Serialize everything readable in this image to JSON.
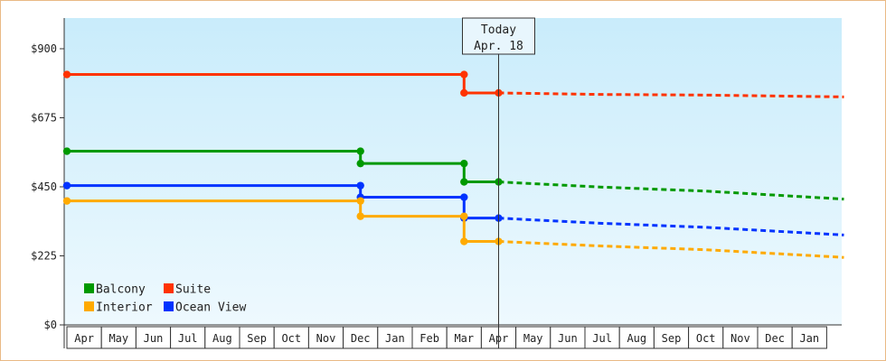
{
  "chart_data": {
    "type": "line",
    "ylim": [
      0,
      1000
    ],
    "y_ticks": [
      {
        "value": 0,
        "label": "$0"
      },
      {
        "value": 225,
        "label": "$225"
      },
      {
        "value": 450,
        "label": "$450"
      },
      {
        "value": 675,
        "label": "$675"
      },
      {
        "value": 900,
        "label": "$900"
      }
    ],
    "months": [
      "Apr",
      "May",
      "Jun",
      "Jul",
      "Aug",
      "Sep",
      "Oct",
      "Nov",
      "Dec",
      "Jan",
      "Feb",
      "Mar",
      "Apr",
      "May",
      "Jun",
      "Jul",
      "Aug",
      "Sep",
      "Oct",
      "Nov",
      "Dec",
      "Jan"
    ],
    "today": {
      "title": "Today",
      "date": "Apr. 18",
      "month_index": 12.5
    },
    "grid": false,
    "legend_position": "bottom-left",
    "series": [
      {
        "name": "Suite",
        "color": "#ff3300",
        "history": [
          [
            0,
            816
          ],
          [
            11.5,
            816
          ],
          [
            11.5,
            756
          ],
          [
            12.5,
            756
          ]
        ],
        "markers": [
          [
            0,
            816
          ],
          [
            11.5,
            816
          ],
          [
            11.5,
            756
          ],
          [
            12.5,
            756
          ]
        ],
        "forecast": [
          [
            12.5,
            756
          ],
          [
            15.5,
            751
          ],
          [
            18.5,
            749
          ],
          [
            22.5,
            743
          ]
        ]
      },
      {
        "name": "Balcony",
        "color": "#009900",
        "history": [
          [
            0,
            566
          ],
          [
            8.5,
            566
          ],
          [
            8.5,
            526
          ],
          [
            11.5,
            526
          ],
          [
            11.5,
            466
          ],
          [
            12.5,
            466
          ]
        ],
        "markers": [
          [
            0,
            566
          ],
          [
            8.5,
            566
          ],
          [
            8.5,
            526
          ],
          [
            11.5,
            526
          ],
          [
            11.5,
            466
          ],
          [
            12.5,
            466
          ]
        ],
        "forecast": [
          [
            12.5,
            466
          ],
          [
            15.5,
            449
          ],
          [
            18.5,
            436
          ],
          [
            22.5,
            410
          ]
        ]
      },
      {
        "name": "Ocean View",
        "color": "#0033ff",
        "history": [
          [
            0,
            454
          ],
          [
            8.5,
            454
          ],
          [
            8.5,
            416
          ],
          [
            11.5,
            416
          ],
          [
            11.5,
            348
          ],
          [
            12.5,
            348
          ]
        ],
        "markers": [
          [
            0,
            454
          ],
          [
            8.5,
            454
          ],
          [
            8.5,
            416
          ],
          [
            11.5,
            416
          ],
          [
            11.5,
            348
          ],
          [
            12.5,
            348
          ]
        ],
        "forecast": [
          [
            12.5,
            348
          ],
          [
            15.5,
            331
          ],
          [
            18.5,
            318
          ],
          [
            22.5,
            293
          ]
        ]
      },
      {
        "name": "Interior",
        "color": "#ffaa00",
        "history": [
          [
            0,
            404
          ],
          [
            8.5,
            404
          ],
          [
            8.5,
            354
          ],
          [
            11.5,
            354
          ],
          [
            11.5,
            272
          ],
          [
            12.5,
            272
          ]
        ],
        "markers": [
          [
            0,
            404
          ],
          [
            8.5,
            404
          ],
          [
            8.5,
            354
          ],
          [
            11.5,
            354
          ],
          [
            11.5,
            272
          ],
          [
            12.5,
            272
          ]
        ],
        "forecast": [
          [
            12.5,
            272
          ],
          [
            15.5,
            257
          ],
          [
            18.5,
            245
          ],
          [
            22.5,
            220
          ]
        ]
      }
    ],
    "legend": [
      {
        "name": "Balcony",
        "color": "#009900"
      },
      {
        "name": "Suite",
        "color": "#ff3300"
      },
      {
        "name": "Interior",
        "color": "#ffaa00"
      },
      {
        "name": "Ocean View",
        "color": "#0033ff"
      }
    ]
  }
}
